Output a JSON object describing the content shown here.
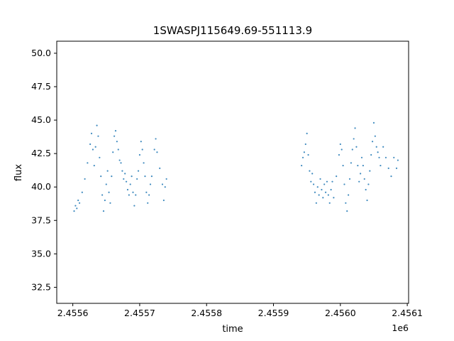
{
  "chart_data": {
    "type": "scatter",
    "title": "1SWASPJ115649.69-551113.9",
    "xlabel": "time",
    "ylabel": "flux",
    "x_offset_label": "1e6",
    "xlim": [
      2455586,
      2456112
    ],
    "ylim": [
      31.3,
      50.9
    ],
    "x_ticks": [
      2455610,
      2455710,
      2455810,
      2455910,
      2456010,
      2456110
    ],
    "x_tick_labels": [
      "2.4556",
      "2.4557",
      "2.4558",
      "2.4559",
      "2.4560",
      "2.4561"
    ],
    "y_ticks": [
      32.5,
      35.0,
      37.5,
      40.0,
      42.5,
      45.0,
      47.5,
      50.0
    ],
    "y_tick_labels": [
      "32.5",
      "35.0",
      "37.5",
      "40.0",
      "42.5",
      "45.0",
      "47.5",
      "50.0"
    ],
    "grid": false,
    "legend": "none",
    "marker_color": "#1f77b4",
    "series": [
      {
        "points": [
          [
            2455612,
            38.2
          ],
          [
            2455614,
            38.6
          ],
          [
            2455616,
            38.4
          ],
          [
            2455618,
            39.0
          ],
          [
            2455620,
            38.8
          ],
          [
            2455624,
            39.6
          ],
          [
            2455628,
            40.6
          ],
          [
            2455632,
            41.8
          ],
          [
            2455636,
            43.2
          ],
          [
            2455638,
            44.0
          ],
          [
            2455640,
            42.8
          ],
          [
            2455642,
            41.6
          ],
          [
            2455644,
            43.0
          ],
          [
            2455646,
            44.6
          ],
          [
            2455648,
            43.8
          ],
          [
            2455650,
            42.2
          ],
          [
            2455652,
            40.8
          ],
          [
            2455654,
            39.4
          ],
          [
            2455656,
            38.2
          ],
          [
            2455658,
            39.0
          ],
          [
            2455660,
            40.2
          ],
          [
            2455662,
            41.2
          ],
          [
            2455664,
            39.6
          ],
          [
            2455666,
            38.8
          ],
          [
            2455668,
            40.8
          ],
          [
            2455670,
            42.6
          ],
          [
            2455672,
            43.8
          ],
          [
            2455674,
            44.2
          ],
          [
            2455676,
            43.4
          ],
          [
            2455678,
            42.8
          ],
          [
            2455680,
            42.0
          ],
          [
            2455682,
            41.8
          ],
          [
            2455684,
            41.2
          ],
          [
            2455686,
            40.6
          ],
          [
            2455688,
            41.0
          ],
          [
            2455690,
            40.4
          ],
          [
            2455692,
            39.8
          ],
          [
            2455694,
            39.4
          ],
          [
            2455696,
            40.2
          ],
          [
            2455698,
            40.8
          ],
          [
            2455700,
            39.6
          ],
          [
            2455702,
            38.6
          ],
          [
            2455704,
            39.4
          ],
          [
            2455706,
            40.6
          ],
          [
            2455708,
            41.2
          ],
          [
            2455710,
            42.4
          ],
          [
            2455712,
            43.4
          ],
          [
            2455714,
            42.8
          ],
          [
            2455716,
            41.8
          ],
          [
            2455718,
            40.8
          ],
          [
            2455720,
            39.6
          ],
          [
            2455722,
            38.8
          ],
          [
            2455724,
            39.4
          ],
          [
            2455726,
            40.2
          ],
          [
            2455728,
            40.8
          ],
          [
            2455732,
            42.8
          ],
          [
            2455734,
            43.6
          ],
          [
            2455736,
            42.6
          ],
          [
            2455740,
            41.4
          ],
          [
            2455744,
            40.2
          ],
          [
            2455746,
            39.0
          ],
          [
            2455748,
            40.0
          ],
          [
            2455750,
            40.6
          ],
          [
            2455952,
            41.6
          ],
          [
            2455954,
            42.2
          ],
          [
            2455956,
            42.6
          ],
          [
            2455958,
            43.2
          ],
          [
            2455960,
            44.0
          ],
          [
            2455962,
            42.4
          ],
          [
            2455964,
            41.2
          ],
          [
            2455966,
            40.4
          ],
          [
            2455968,
            41.0
          ],
          [
            2455970,
            40.2
          ],
          [
            2455972,
            39.6
          ],
          [
            2455974,
            38.8
          ],
          [
            2455976,
            40.0
          ],
          [
            2455978,
            39.4
          ],
          [
            2455980,
            40.6
          ],
          [
            2455982,
            39.8
          ],
          [
            2455984,
            39.2
          ],
          [
            2455986,
            40.2
          ],
          [
            2455988,
            39.6
          ],
          [
            2455990,
            40.4
          ],
          [
            2455992,
            39.4
          ],
          [
            2455994,
            38.8
          ],
          [
            2455996,
            39.8
          ],
          [
            2455998,
            40.4
          ],
          [
            2456000,
            39.2
          ],
          [
            2456004,
            40.8
          ],
          [
            2456008,
            42.4
          ],
          [
            2456010,
            43.2
          ],
          [
            2456012,
            42.8
          ],
          [
            2456014,
            41.6
          ],
          [
            2456016,
            40.2
          ],
          [
            2456018,
            38.8
          ],
          [
            2456020,
            38.2
          ],
          [
            2456022,
            39.4
          ],
          [
            2456024,
            40.6
          ],
          [
            2456026,
            41.8
          ],
          [
            2456028,
            42.8
          ],
          [
            2456030,
            43.6
          ],
          [
            2456032,
            44.4
          ],
          [
            2456034,
            43.0
          ],
          [
            2456036,
            41.6
          ],
          [
            2456038,
            40.4
          ],
          [
            2456040,
            41.0
          ],
          [
            2456042,
            42.2
          ],
          [
            2456044,
            41.6
          ],
          [
            2456046,
            40.6
          ],
          [
            2456048,
            39.8
          ],
          [
            2456050,
            39.0
          ],
          [
            2456052,
            40.2
          ],
          [
            2456054,
            41.2
          ],
          [
            2456056,
            42.4
          ],
          [
            2456058,
            43.4
          ],
          [
            2456060,
            44.8
          ],
          [
            2456062,
            43.8
          ],
          [
            2456064,
            43.0
          ],
          [
            2456066,
            42.6
          ],
          [
            2456068,
            42.2
          ],
          [
            2456070,
            41.6
          ],
          [
            2456074,
            43.0
          ],
          [
            2456078,
            42.2
          ],
          [
            2456082,
            41.4
          ],
          [
            2456086,
            40.8
          ],
          [
            2456090,
            42.2
          ],
          [
            2456094,
            41.4
          ],
          [
            2456096,
            42.0
          ]
        ]
      }
    ]
  }
}
